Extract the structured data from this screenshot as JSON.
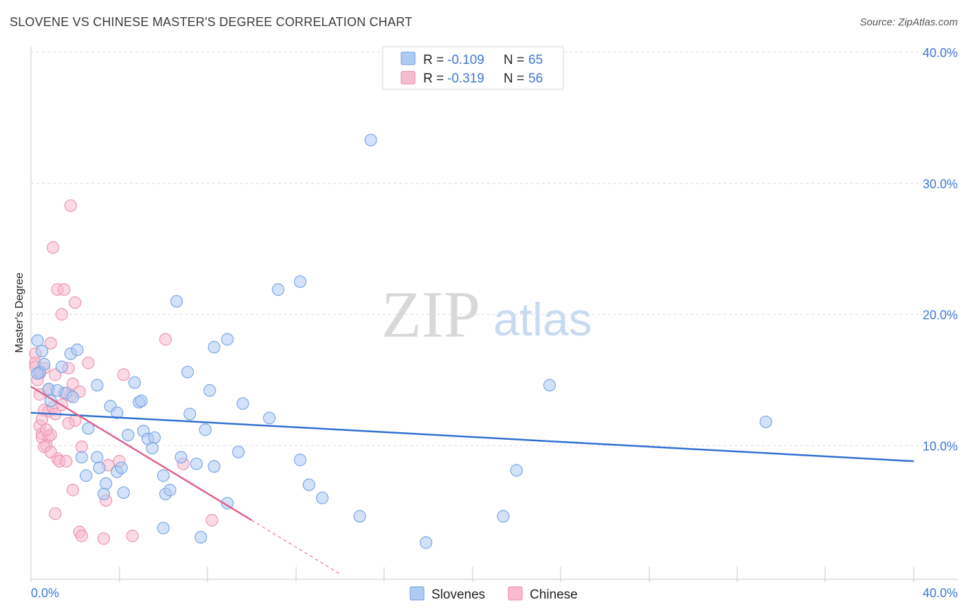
{
  "header": {
    "title": "SLOVENE VS CHINESE MASTER'S DEGREE CORRELATION CHART",
    "source": "Source: ZipAtlas.com"
  },
  "watermark": {
    "zip": "ZIP",
    "atlas": "atlas"
  },
  "colors": {
    "slovenes_fill": "#aecbf2",
    "slovenes_stroke": "#7aa6e6",
    "slovenes_line": "#2f6fcf",
    "chinese_fill": "#f7bcd0",
    "chinese_stroke": "#ec95b4",
    "chinese_line": "#e0608e",
    "axis_label": "#3d78d8"
  },
  "legend": {
    "rows": [
      {
        "r_label": "R = ",
        "r_value": "-0.109",
        "n_label": "N = ",
        "n_value": "65"
      },
      {
        "r_label": "R = ",
        "r_value": "-0.319",
        "n_label": "N = ",
        "n_value": "56"
      }
    ]
  },
  "chart_data": {
    "type": "scatter",
    "title": "SLOVENE VS CHINESE MASTER'S DEGREE CORRELATION CHART",
    "xlabel": "",
    "ylabel": "Master's Degree",
    "xlim": [
      0,
      40
    ],
    "ylim": [
      0,
      40
    ],
    "x_tick_labels": [
      "0.0%",
      "40.0%"
    ],
    "y_tick_labels": [
      {
        "value": 40,
        "label": "40.0%"
      },
      {
        "value": 30,
        "label": "30.0%"
      },
      {
        "value": 20,
        "label": "20.0%"
      },
      {
        "value": 10,
        "label": "10.0%"
      }
    ],
    "series": [
      {
        "name": "Slovenes",
        "r": -0.109,
        "n": 65,
        "trend": {
          "x": [
            0,
            40
          ],
          "y": [
            12.5,
            8.8
          ]
        },
        "points": [
          [
            0.3,
            18.0
          ],
          [
            0.5,
            17.2
          ],
          [
            0.6,
            16.2
          ],
          [
            0.4,
            15.6
          ],
          [
            0.3,
            15.5
          ],
          [
            0.8,
            14.3
          ],
          [
            1.4,
            16.0
          ],
          [
            0.9,
            13.4
          ],
          [
            1.8,
            17.0
          ],
          [
            2.1,
            17.3
          ],
          [
            1.2,
            14.2
          ],
          [
            1.6,
            14.0
          ],
          [
            1.9,
            13.7
          ],
          [
            3.0,
            14.6
          ],
          [
            3.6,
            13.0
          ],
          [
            3.9,
            12.5
          ],
          [
            4.7,
            14.8
          ],
          [
            4.9,
            13.3
          ],
          [
            5.0,
            13.4
          ],
          [
            2.6,
            11.3
          ],
          [
            5.1,
            11.1
          ],
          [
            4.4,
            10.8
          ],
          [
            5.3,
            10.5
          ],
          [
            5.6,
            10.6
          ],
          [
            5.5,
            9.8
          ],
          [
            6.6,
            21.0
          ],
          [
            7.1,
            15.6
          ],
          [
            7.2,
            12.4
          ],
          [
            8.1,
            14.2
          ],
          [
            8.9,
            18.1
          ],
          [
            8.3,
            17.5
          ],
          [
            7.9,
            11.2
          ],
          [
            9.6,
            13.2
          ],
          [
            10.8,
            12.1
          ],
          [
            11.2,
            21.9
          ],
          [
            12.2,
            22.5
          ],
          [
            15.4,
            33.3
          ],
          [
            2.3,
            9.1
          ],
          [
            3.0,
            9.1
          ],
          [
            2.5,
            7.7
          ],
          [
            3.1,
            8.3
          ],
          [
            3.9,
            8.0
          ],
          [
            4.1,
            8.3
          ],
          [
            3.4,
            7.1
          ],
          [
            3.3,
            6.3
          ],
          [
            4.2,
            6.4
          ],
          [
            6.0,
            7.7
          ],
          [
            6.1,
            6.3
          ],
          [
            6.3,
            6.6
          ],
          [
            6.8,
            9.1
          ],
          [
            7.5,
            8.6
          ],
          [
            8.3,
            8.4
          ],
          [
            9.4,
            9.5
          ],
          [
            12.2,
            8.9
          ],
          [
            12.6,
            7.0
          ],
          [
            13.2,
            6.0
          ],
          [
            14.9,
            4.6
          ],
          [
            17.9,
            2.6
          ],
          [
            21.4,
            4.6
          ],
          [
            22.0,
            8.1
          ],
          [
            23.5,
            14.6
          ],
          [
            33.3,
            11.8
          ],
          [
            6.0,
            3.7
          ],
          [
            7.7,
            3.0
          ],
          [
            8.9,
            5.6
          ]
        ]
      },
      {
        "name": "Chinese",
        "r": -0.319,
        "n": 56,
        "trend": {
          "x": [
            0,
            10.0
          ],
          "y": [
            14.5,
            4.3
          ]
        },
        "trend_extension": {
          "x": [
            10.0,
            14.0
          ],
          "y": [
            4.3,
            0.2
          ]
        },
        "points": [
          [
            1.8,
            28.3
          ],
          [
            1.0,
            25.1
          ],
          [
            1.2,
            21.9
          ],
          [
            1.5,
            21.9
          ],
          [
            2.0,
            20.9
          ],
          [
            1.4,
            20.0
          ],
          [
            6.1,
            18.1
          ],
          [
            0.9,
            17.8
          ],
          [
            0.2,
            17.0
          ],
          [
            0.2,
            16.3
          ],
          [
            2.6,
            16.3
          ],
          [
            0.2,
            16.0
          ],
          [
            0.4,
            15.5
          ],
          [
            0.6,
            15.9
          ],
          [
            1.1,
            15.4
          ],
          [
            1.7,
            15.9
          ],
          [
            4.2,
            15.4
          ],
          [
            1.9,
            14.7
          ],
          [
            0.8,
            14.3
          ],
          [
            1.5,
            14.0
          ],
          [
            2.2,
            14.1
          ],
          [
            1.8,
            13.8
          ],
          [
            0.6,
            12.7
          ],
          [
            0.8,
            12.6
          ],
          [
            1.0,
            12.9
          ],
          [
            1.1,
            12.4
          ],
          [
            2.0,
            11.9
          ],
          [
            1.7,
            11.7
          ],
          [
            0.4,
            11.5
          ],
          [
            0.5,
            10.9
          ],
          [
            0.5,
            10.6
          ],
          [
            0.8,
            10.7
          ],
          [
            0.9,
            10.8
          ],
          [
            0.7,
            10.0
          ],
          [
            0.6,
            9.9
          ],
          [
            2.3,
            9.9
          ],
          [
            1.2,
            9.0
          ],
          [
            1.3,
            8.8
          ],
          [
            1.6,
            8.8
          ],
          [
            4.0,
            8.8
          ],
          [
            3.5,
            8.5
          ],
          [
            6.9,
            8.6
          ],
          [
            1.9,
            6.6
          ],
          [
            3.4,
            5.8
          ],
          [
            1.1,
            4.8
          ],
          [
            8.2,
            4.3
          ],
          [
            2.2,
            3.4
          ],
          [
            2.3,
            3.1
          ],
          [
            3.3,
            2.9
          ],
          [
            4.6,
            3.1
          ],
          [
            0.3,
            15.0
          ],
          [
            0.5,
            12.0
          ],
          [
            0.9,
            9.5
          ],
          [
            1.4,
            13.1
          ],
          [
            0.7,
            11.2
          ],
          [
            0.4,
            13.9
          ]
        ]
      }
    ],
    "legend": [
      "Slovenes",
      "Chinese"
    ]
  }
}
